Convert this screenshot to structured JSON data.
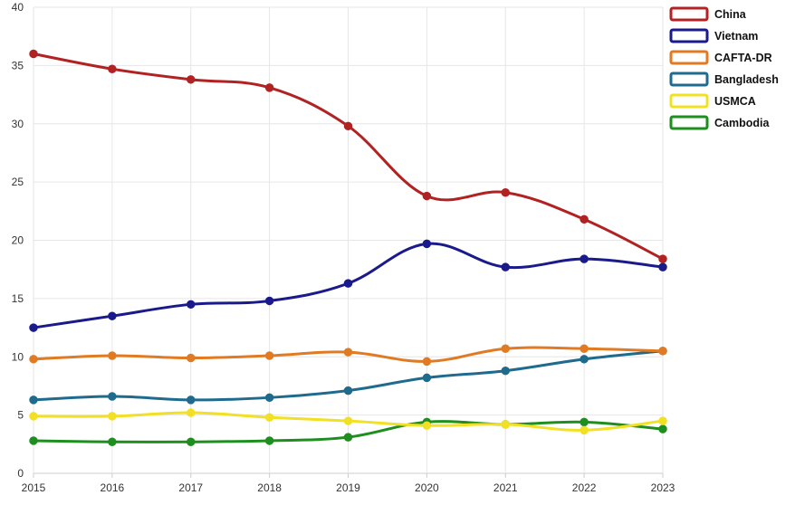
{
  "chart_data": {
    "type": "line",
    "title": "",
    "xlabel": "",
    "ylabel": "",
    "x": [
      "2015",
      "2016",
      "2017",
      "2018",
      "2019",
      "2020",
      "2021",
      "2022",
      "2023"
    ],
    "ylim": [
      0,
      40
    ],
    "yticks": [
      "0",
      "5",
      "10",
      "15",
      "20",
      "25",
      "30",
      "35",
      "40"
    ],
    "grid": true,
    "legend_position": "top-right",
    "series": [
      {
        "name": "China",
        "color": "#b22222",
        "values": [
          36.0,
          34.7,
          33.8,
          33.1,
          29.8,
          23.8,
          24.1,
          21.8,
          18.4
        ]
      },
      {
        "name": "Vietnam",
        "color": "#1a1a8c",
        "values": [
          12.5,
          13.5,
          14.5,
          14.8,
          16.3,
          19.7,
          17.7,
          18.4,
          17.7
        ]
      },
      {
        "name": "CAFTA-DR",
        "color": "#e07b24",
        "values": [
          9.8,
          10.1,
          9.9,
          10.1,
          10.4,
          9.6,
          10.7,
          10.7,
          10.5
        ]
      },
      {
        "name": "Bangladesh",
        "color": "#1f6b8e",
        "values": [
          6.3,
          6.6,
          6.3,
          6.5,
          7.1,
          8.2,
          8.8,
          9.8,
          10.5
        ]
      },
      {
        "name": "USMCA",
        "color": "#f2e024",
        "values": [
          4.9,
          4.9,
          5.2,
          4.8,
          4.5,
          4.1,
          4.2,
          3.7,
          4.5
        ]
      },
      {
        "name": "Cambodia",
        "color": "#1e8f1e",
        "values": [
          2.8,
          2.7,
          2.7,
          2.8,
          3.1,
          4.4,
          4.2,
          4.4,
          3.8
        ]
      }
    ]
  }
}
